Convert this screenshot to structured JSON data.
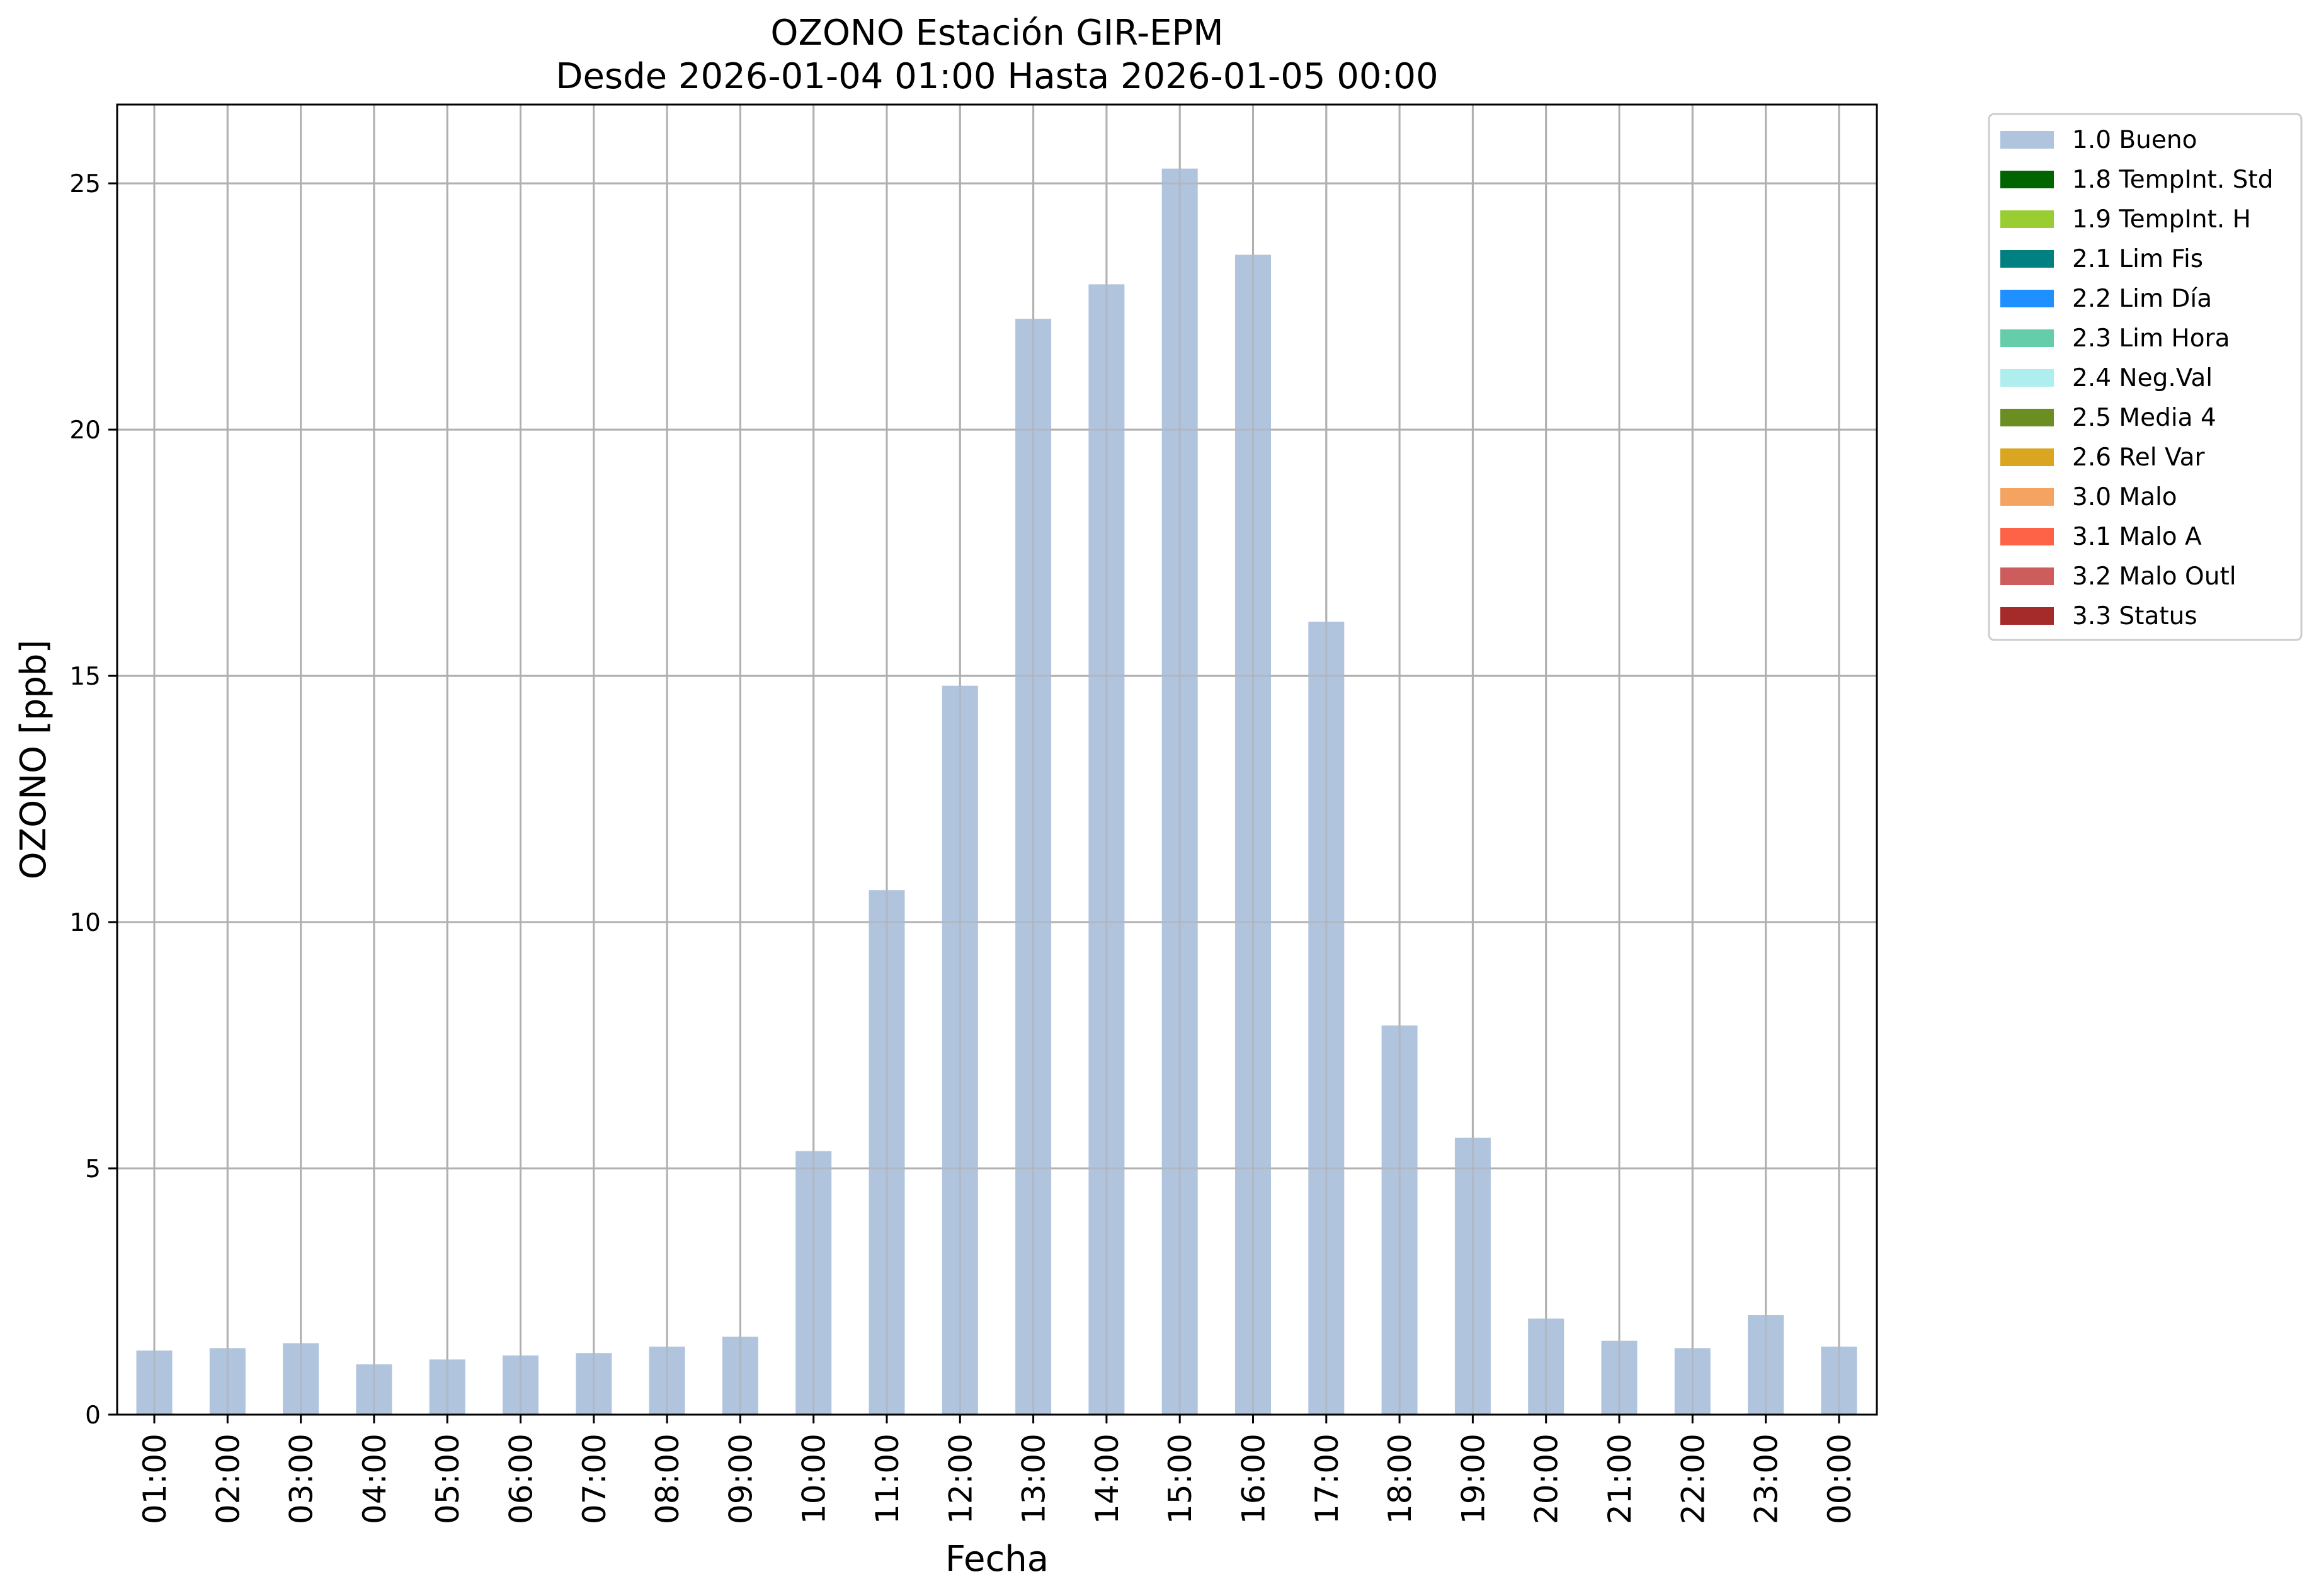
{
  "chart_data": {
    "type": "bar",
    "title": "OZONO Estación GIR-EPM",
    "subtitle": "Desde 2026-01-04 01:00 Hasta 2026-01-05 00:00",
    "xlabel": "Fecha",
    "ylabel": "OZONO [ppb]",
    "ylim": [
      0,
      26.6
    ],
    "yticks": [
      "0",
      "5",
      "10",
      "15",
      "20",
      "25"
    ],
    "grid": true,
    "legend_position": "outside-top-right",
    "categories": [
      "01:00",
      "02:00",
      "03:00",
      "04:00",
      "05:00",
      "06:00",
      "07:00",
      "08:00",
      "09:00",
      "10:00",
      "11:00",
      "12:00",
      "13:00",
      "14:00",
      "15:00",
      "16:00",
      "17:00",
      "18:00",
      "19:00",
      "20:00",
      "21:00",
      "22:00",
      "23:00",
      "00:00"
    ],
    "series": [
      {
        "name": "1.0 Bueno",
        "color": "#b0c4de",
        "values": [
          1.3,
          1.35,
          1.45,
          1.02,
          1.12,
          1.2,
          1.25,
          1.38,
          1.58,
          5.35,
          10.65,
          14.8,
          22.25,
          22.95,
          25.3,
          23.55,
          16.1,
          7.9,
          5.62,
          1.95,
          1.5,
          1.35,
          2.02,
          1.38
        ]
      }
    ],
    "legend": [
      {
        "label": "1.0 Bueno",
        "color": "#b0c4de"
      },
      {
        "label": "1.8 TempInt. Std",
        "color": "#006400"
      },
      {
        "label": "1.9 TempInt. H",
        "color": "#9acd32"
      },
      {
        "label": "2.1 Lim Fis",
        "color": "#008080"
      },
      {
        "label": "2.2 Lim Día",
        "color": "#1e90ff"
      },
      {
        "label": "2.3 Lim Hora",
        "color": "#66cdaa"
      },
      {
        "label": "2.4 Neg.Val",
        "color": "#afeeee"
      },
      {
        "label": "2.5 Media 4",
        "color": "#6b8e23"
      },
      {
        "label": "2.6 Rel Var",
        "color": "#daa520"
      },
      {
        "label": "3.0 Malo",
        "color": "#f4a460"
      },
      {
        "label": "3.1 Malo A",
        "color": "#ff6347"
      },
      {
        "label": "3.2 Malo Outl",
        "color": "#cd5c5c"
      },
      {
        "label": "3.3 Status",
        "color": "#a52a2a"
      }
    ]
  }
}
